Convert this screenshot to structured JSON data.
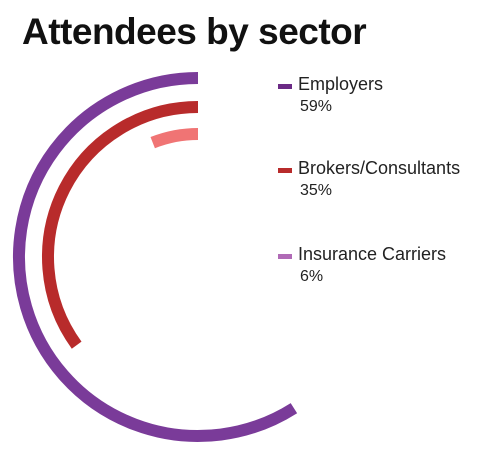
{
  "chart_data": {
    "type": "radial-bar",
    "title": "Attendees by sector",
    "unit": "%",
    "series": [
      {
        "name": "Employers",
        "value": 59,
        "label": "59%",
        "color": "#7a3b99"
      },
      {
        "name": "Brokers/Consultants",
        "value": 35,
        "label": "35%",
        "color": "#b82b2b"
      },
      {
        "name": "Insurance Carriers",
        "value": 6,
        "label": "6%",
        "color": "#f07474"
      }
    ],
    "legend_colors": [
      "#6b2a85",
      "#b82b2b",
      "#b06ab6"
    ],
    "legend_position": "right"
  }
}
